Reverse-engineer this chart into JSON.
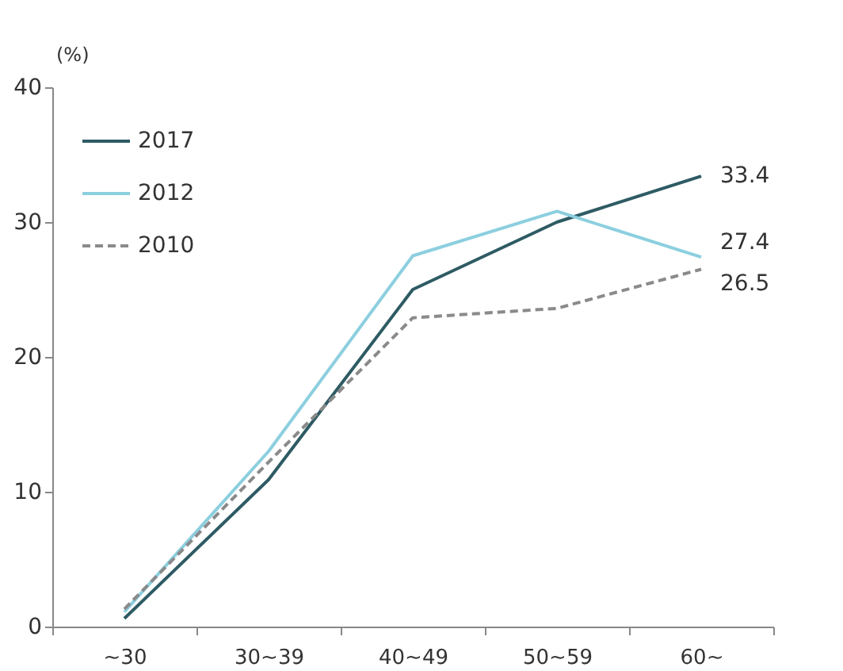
{
  "chart_data": {
    "type": "line",
    "ylabel": "(%)",
    "categories": [
      "~30",
      "30~39",
      "40~49",
      "50~59",
      "60~"
    ],
    "ylim": [
      0,
      40
    ],
    "yticks": [
      0,
      10,
      20,
      30,
      40
    ],
    "grid": false,
    "legend": "top left",
    "series": [
      {
        "name": "2017",
        "color": "#2e5b64",
        "line_style": "solid",
        "values": [
          0.6,
          10.9,
          25.0,
          30.0,
          33.4
        ],
        "value_labels": [
          null,
          null,
          null,
          null,
          "33.4"
        ]
      },
      {
        "name": "2012",
        "color": "#8ccfdf",
        "line_style": "solid",
        "values": [
          1.1,
          13.0,
          27.5,
          30.8,
          27.4
        ],
        "value_labels": [
          null,
          null,
          null,
          null,
          "27.4"
        ]
      },
      {
        "name": "2010",
        "color": "#8a8a8a",
        "line_style": "dashed",
        "values": [
          1.3,
          12.2,
          22.9,
          23.6,
          26.5
        ],
        "value_labels": [
          null,
          null,
          null,
          null,
          "26.5"
        ]
      }
    ]
  }
}
